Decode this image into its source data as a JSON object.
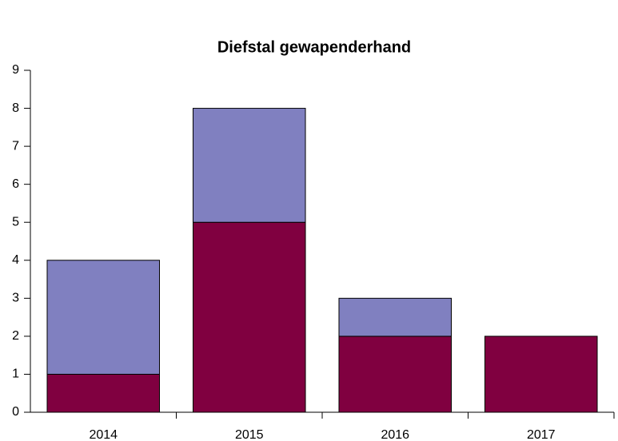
{
  "chart_data": {
    "type": "stacked_bar",
    "title": "Diefstal gewapenderhand",
    "categories": [
      "2014",
      "2015",
      "2016",
      "2017"
    ],
    "series": [
      {
        "color": "#800040",
        "values": [
          1,
          5,
          2,
          2
        ]
      },
      {
        "color": "#8080c0",
        "values": [
          3,
          3,
          1,
          0
        ]
      }
    ],
    "ylim": [
      0,
      9
    ],
    "yticks": [
      0,
      1,
      2,
      3,
      4,
      5,
      6,
      7,
      8,
      9
    ],
    "grid": false
  }
}
